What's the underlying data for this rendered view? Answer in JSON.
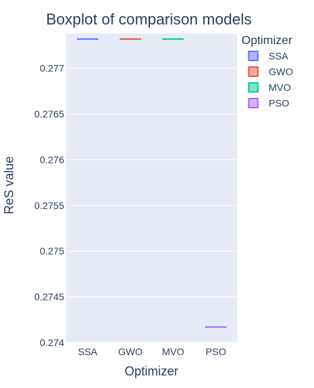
{
  "chart_data": {
    "type": "box",
    "title": "Boxplot of comparison models",
    "xlabel": "Optimizer",
    "ylabel": "ReS value",
    "categories": [
      "SSA",
      "GWO",
      "MVO",
      "PSO"
    ],
    "series": [
      {
        "name": "SSA",
        "color": "#636efa",
        "value": 0.27732
      },
      {
        "name": "GWO",
        "color": "#ef553b",
        "value": 0.27732
      },
      {
        "name": "MVO",
        "color": "#00cc96",
        "value": 0.27732
      },
      {
        "name": "PSO",
        "color": "#ab63fa",
        "value": 0.27417
      }
    ],
    "yticks": [
      0.274,
      0.2745,
      0.275,
      0.2755,
      0.276,
      0.2765,
      0.277
    ],
    "ylim": [
      0.274,
      0.27738
    ],
    "legend": {
      "title": "Optimizer",
      "position": "top-right"
    },
    "plot_bg": "#e5ecf6",
    "grid": true
  }
}
